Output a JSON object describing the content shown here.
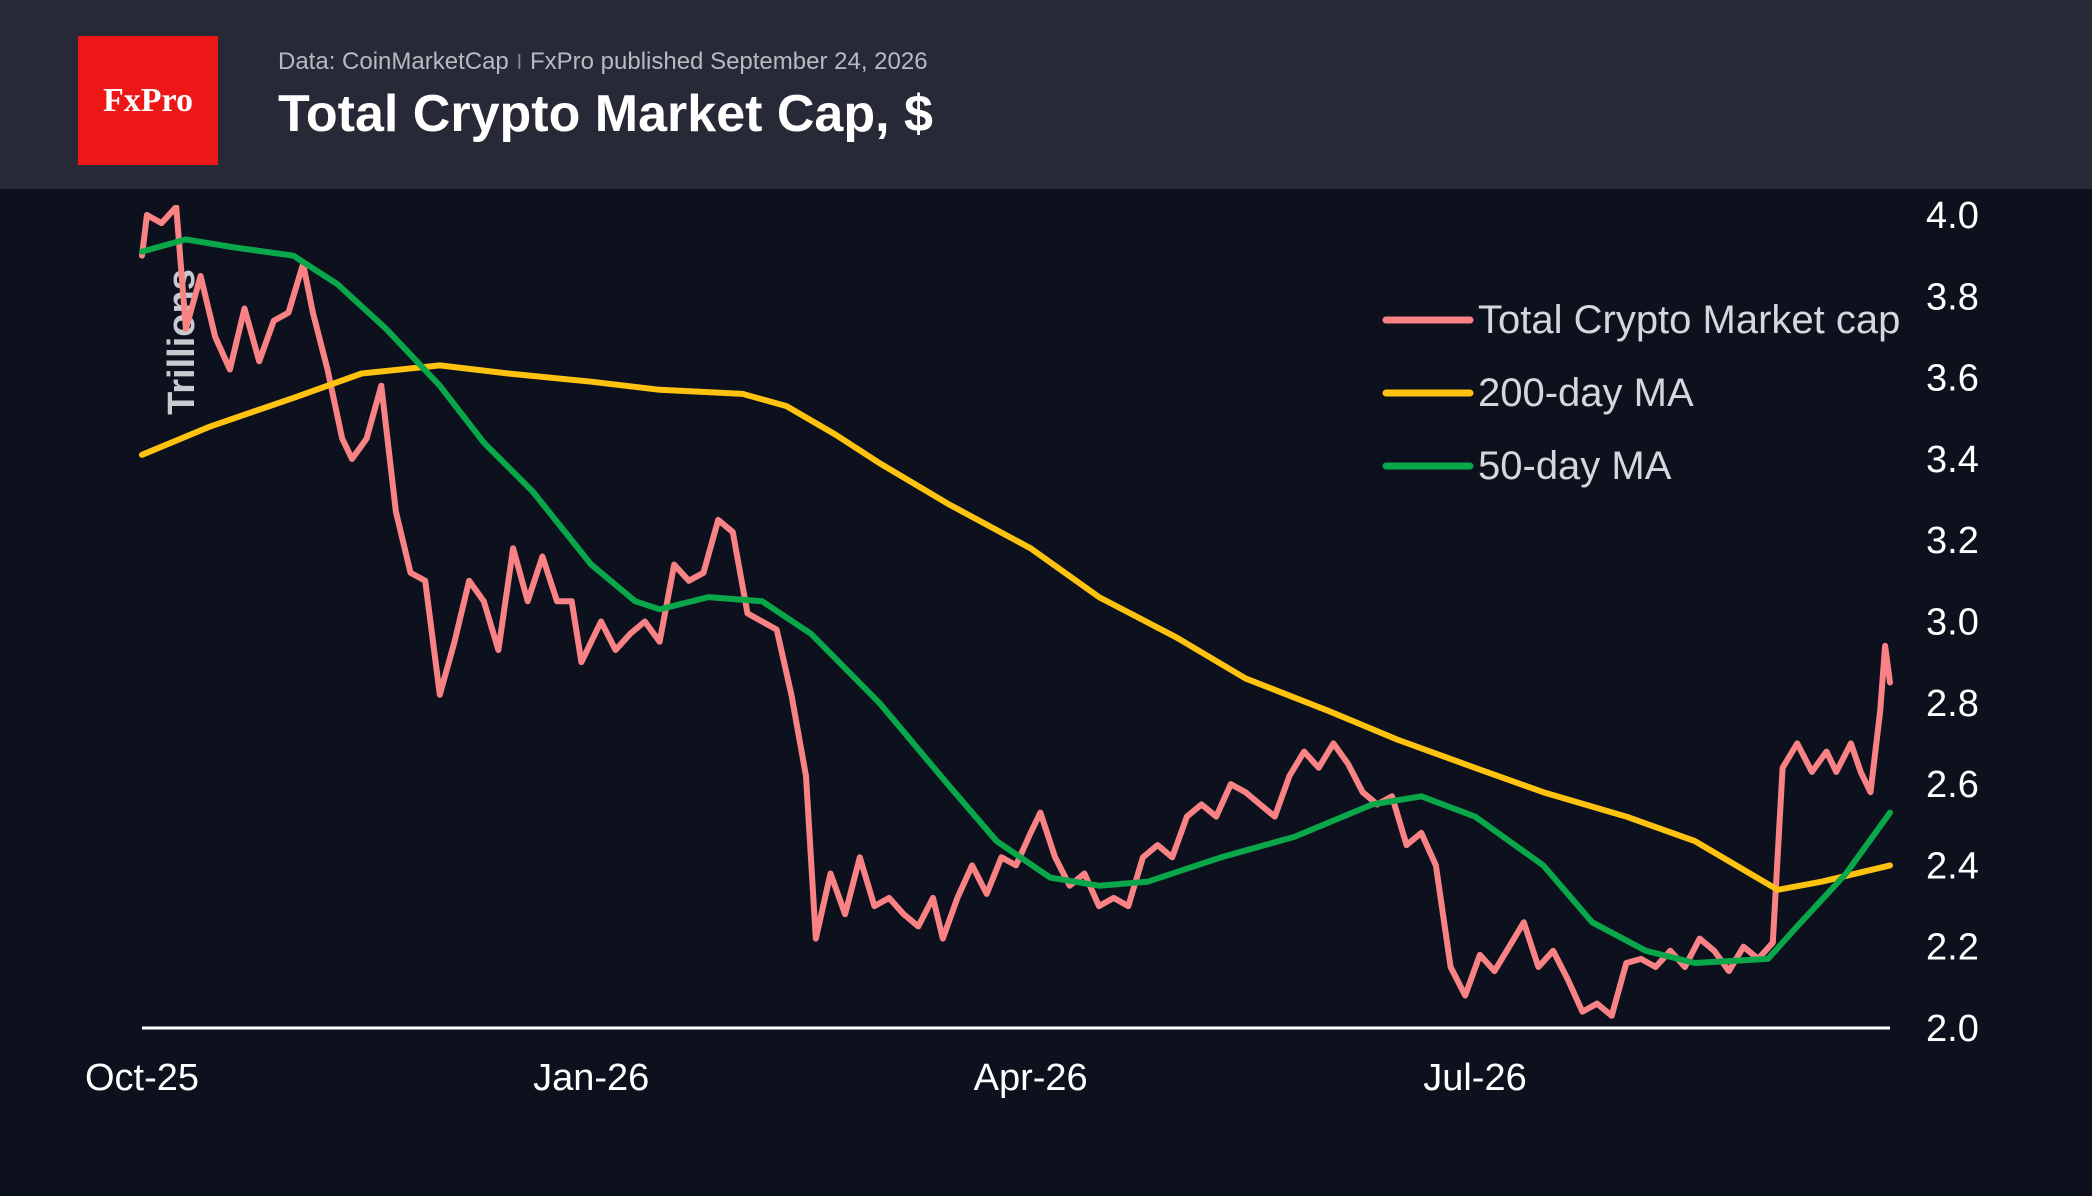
{
  "header": {
    "logo_text": "FxPro",
    "source": "Data: CoinMarketCap",
    "separator": "ǀ",
    "published": "FxPro published September 24, 2026",
    "title": "Total Crypto Market Cap, $"
  },
  "colors": {
    "background": "#0c111d",
    "header_bg": "#272a36",
    "logo_bg": "#ee1717",
    "market_cap": "#f98285",
    "ma200": "#ffc20e",
    "ma50": "#0aa64a",
    "axis": "#ffffff",
    "text": "#d5d7dd"
  },
  "chart_data": {
    "type": "line",
    "ylabel": "Trillions",
    "ylim": [
      2.0,
      4.0
    ],
    "y_ticks": [
      "2.0",
      "2.2",
      "2.4",
      "2.6",
      "2.8",
      "3.0",
      "3.2",
      "3.4",
      "3.6",
      "3.8",
      "4.0"
    ],
    "x_tick_labels": [
      {
        "label": "Oct-25",
        "date": "2025-10-01"
      },
      {
        "label": "Jan-26",
        "date": "2026-01-01"
      },
      {
        "label": "Apr-26",
        "date": "2026-04-01"
      },
      {
        "label": "Jul-26",
        "date": "2026-07-01"
      }
    ],
    "x_range": [
      "2025-10-01",
      "2026-09-24"
    ],
    "legend_position": "top-right",
    "series": [
      {
        "name": "Total Crypto Market cap",
        "color": "#f98285",
        "points": [
          [
            "2025-10-01",
            3.9
          ],
          [
            "2025-10-02",
            4.0
          ],
          [
            "2025-10-05",
            3.98
          ],
          [
            "2025-10-08",
            4.02
          ],
          [
            "2025-10-10",
            3.72
          ],
          [
            "2025-10-13",
            3.85
          ],
          [
            "2025-10-16",
            3.7
          ],
          [
            "2025-10-19",
            3.62
          ],
          [
            "2025-10-22",
            3.77
          ],
          [
            "2025-10-25",
            3.64
          ],
          [
            "2025-10-28",
            3.74
          ],
          [
            "2025-10-31",
            3.76
          ],
          [
            "2025-11-03",
            3.88
          ],
          [
            "2025-11-05",
            3.76
          ],
          [
            "2025-11-08",
            3.62
          ],
          [
            "2025-11-11",
            3.45
          ],
          [
            "2025-11-13",
            3.4
          ],
          [
            "2025-11-16",
            3.45
          ],
          [
            "2025-11-19",
            3.58
          ],
          [
            "2025-11-22",
            3.27
          ],
          [
            "2025-11-25",
            3.12
          ],
          [
            "2025-11-28",
            3.1
          ],
          [
            "2025-12-01",
            2.82
          ],
          [
            "2025-12-04",
            2.95
          ],
          [
            "2025-12-07",
            3.1
          ],
          [
            "2025-12-10",
            3.05
          ],
          [
            "2025-12-13",
            2.93
          ],
          [
            "2025-12-16",
            3.18
          ],
          [
            "2025-12-19",
            3.05
          ],
          [
            "2025-12-22",
            3.16
          ],
          [
            "2025-12-25",
            3.05
          ],
          [
            "2025-12-28",
            3.05
          ],
          [
            "2025-12-30",
            2.9
          ],
          [
            "2026-01-03",
            3.0
          ],
          [
            "2026-01-06",
            2.93
          ],
          [
            "2026-01-09",
            2.97
          ],
          [
            "2026-01-12",
            3.0
          ],
          [
            "2026-01-15",
            2.95
          ],
          [
            "2026-01-18",
            3.14
          ],
          [
            "2026-01-21",
            3.1
          ],
          [
            "2026-01-24",
            3.12
          ],
          [
            "2026-01-27",
            3.25
          ],
          [
            "2026-01-30",
            3.22
          ],
          [
            "2026-02-02",
            3.02
          ],
          [
            "2026-02-05",
            3.0
          ],
          [
            "2026-02-08",
            2.98
          ],
          [
            "2026-02-11",
            2.82
          ],
          [
            "2026-02-14",
            2.62
          ],
          [
            "2026-02-16",
            2.22
          ],
          [
            "2026-02-19",
            2.38
          ],
          [
            "2026-02-22",
            2.28
          ],
          [
            "2026-02-25",
            2.42
          ],
          [
            "2026-02-28",
            2.3
          ],
          [
            "2026-03-03",
            2.32
          ],
          [
            "2026-03-06",
            2.28
          ],
          [
            "2026-03-09",
            2.25
          ],
          [
            "2026-03-12",
            2.32
          ],
          [
            "2026-03-14",
            2.22
          ],
          [
            "2026-03-17",
            2.32
          ],
          [
            "2026-03-20",
            2.4
          ],
          [
            "2026-03-23",
            2.33
          ],
          [
            "2026-03-26",
            2.42
          ],
          [
            "2026-03-29",
            2.4
          ],
          [
            "2026-04-01",
            2.48
          ],
          [
            "2026-04-03",
            2.53
          ],
          [
            "2026-04-06",
            2.42
          ],
          [
            "2026-04-09",
            2.35
          ],
          [
            "2026-04-12",
            2.38
          ],
          [
            "2026-04-15",
            2.3
          ],
          [
            "2026-04-18",
            2.32
          ],
          [
            "2026-04-21",
            2.3
          ],
          [
            "2026-04-24",
            2.42
          ],
          [
            "2026-04-27",
            2.45
          ],
          [
            "2026-04-30",
            2.42
          ],
          [
            "2026-05-03",
            2.52
          ],
          [
            "2026-05-06",
            2.55
          ],
          [
            "2026-05-09",
            2.52
          ],
          [
            "2026-05-12",
            2.6
          ],
          [
            "2026-05-15",
            2.58
          ],
          [
            "2026-05-18",
            2.55
          ],
          [
            "2026-05-21",
            2.52
          ],
          [
            "2026-05-24",
            2.62
          ],
          [
            "2026-05-27",
            2.68
          ],
          [
            "2026-05-30",
            2.64
          ],
          [
            "2026-06-02",
            2.7
          ],
          [
            "2026-06-05",
            2.65
          ],
          [
            "2026-06-08",
            2.58
          ],
          [
            "2026-06-11",
            2.55
          ],
          [
            "2026-06-14",
            2.57
          ],
          [
            "2026-06-17",
            2.45
          ],
          [
            "2026-06-20",
            2.48
          ],
          [
            "2026-06-23",
            2.4
          ],
          [
            "2026-06-26",
            2.15
          ],
          [
            "2026-06-29",
            2.08
          ],
          [
            "2026-07-02",
            2.18
          ],
          [
            "2026-07-05",
            2.14
          ],
          [
            "2026-07-08",
            2.2
          ],
          [
            "2026-07-11",
            2.26
          ],
          [
            "2026-07-14",
            2.15
          ],
          [
            "2026-07-17",
            2.19
          ],
          [
            "2026-07-20",
            2.12
          ],
          [
            "2026-07-23",
            2.04
          ],
          [
            "2026-07-26",
            2.06
          ],
          [
            "2026-07-29",
            2.03
          ],
          [
            "2026-08-01",
            2.16
          ],
          [
            "2026-08-04",
            2.17
          ],
          [
            "2026-08-07",
            2.15
          ],
          [
            "2026-08-10",
            2.19
          ],
          [
            "2026-08-13",
            2.15
          ],
          [
            "2026-08-16",
            2.22
          ],
          [
            "2026-08-19",
            2.19
          ],
          [
            "2026-08-22",
            2.14
          ],
          [
            "2026-08-25",
            2.2
          ],
          [
            "2026-08-28",
            2.17
          ],
          [
            "2026-08-31",
            2.21
          ],
          [
            "2026-09-02",
            2.64
          ],
          [
            "2026-09-05",
            2.7
          ],
          [
            "2026-09-08",
            2.63
          ],
          [
            "2026-09-11",
            2.68
          ],
          [
            "2026-09-13",
            2.63
          ],
          [
            "2026-09-16",
            2.7
          ],
          [
            "2026-09-18",
            2.63
          ],
          [
            "2026-09-20",
            2.58
          ],
          [
            "2026-09-22",
            2.78
          ],
          [
            "2026-09-23",
            2.94
          ],
          [
            "2026-09-24",
            2.85
          ]
        ]
      },
      {
        "name": "200-day MA",
        "color": "#ffc20e",
        "points": [
          [
            "2025-10-01",
            3.41
          ],
          [
            "2025-10-15",
            3.48
          ],
          [
            "2025-11-01",
            3.55
          ],
          [
            "2025-11-15",
            3.61
          ],
          [
            "2025-12-01",
            3.63
          ],
          [
            "2025-12-15",
            3.61
          ],
          [
            "2026-01-01",
            3.59
          ],
          [
            "2026-01-15",
            3.57
          ],
          [
            "2026-02-01",
            3.56
          ],
          [
            "2026-02-10",
            3.53
          ],
          [
            "2026-02-20",
            3.46
          ],
          [
            "2026-03-01",
            3.39
          ],
          [
            "2026-03-15",
            3.29
          ],
          [
            "2026-04-01",
            3.18
          ],
          [
            "2026-04-15",
            3.06
          ],
          [
            "2026-05-01",
            2.96
          ],
          [
            "2026-05-15",
            2.86
          ],
          [
            "2026-06-01",
            2.78
          ],
          [
            "2026-06-15",
            2.71
          ],
          [
            "2026-07-01",
            2.64
          ],
          [
            "2026-07-15",
            2.58
          ],
          [
            "2026-08-01",
            2.52
          ],
          [
            "2026-08-15",
            2.46
          ],
          [
            "2026-09-01",
            2.34
          ],
          [
            "2026-09-10",
            2.36
          ],
          [
            "2026-09-24",
            2.4
          ]
        ]
      },
      {
        "name": "50-day MA",
        "color": "#0aa64a",
        "points": [
          [
            "2025-10-01",
            3.91
          ],
          [
            "2025-10-10",
            3.94
          ],
          [
            "2025-10-20",
            3.92
          ],
          [
            "2025-11-01",
            3.9
          ],
          [
            "2025-11-10",
            3.83
          ],
          [
            "2025-11-20",
            3.72
          ],
          [
            "2025-12-01",
            3.58
          ],
          [
            "2025-12-10",
            3.44
          ],
          [
            "2025-12-20",
            3.32
          ],
          [
            "2026-01-01",
            3.14
          ],
          [
            "2026-01-10",
            3.05
          ],
          [
            "2026-01-15",
            3.03
          ],
          [
            "2026-01-25",
            3.06
          ],
          [
            "2026-02-05",
            3.05
          ],
          [
            "2026-02-15",
            2.97
          ],
          [
            "2026-03-01",
            2.8
          ],
          [
            "2026-03-15",
            2.6
          ],
          [
            "2026-03-25",
            2.46
          ],
          [
            "2026-04-05",
            2.37
          ],
          [
            "2026-04-15",
            2.35
          ],
          [
            "2026-04-25",
            2.36
          ],
          [
            "2026-05-10",
            2.42
          ],
          [
            "2026-05-25",
            2.47
          ],
          [
            "2026-06-10",
            2.55
          ],
          [
            "2026-06-20",
            2.57
          ],
          [
            "2026-07-01",
            2.52
          ],
          [
            "2026-07-15",
            2.4
          ],
          [
            "2026-07-25",
            2.26
          ],
          [
            "2026-08-05",
            2.19
          ],
          [
            "2026-08-15",
            2.16
          ],
          [
            "2026-08-30",
            2.17
          ],
          [
            "2026-09-05",
            2.25
          ],
          [
            "2026-09-15",
            2.38
          ],
          [
            "2026-09-24",
            2.53
          ]
        ]
      }
    ]
  }
}
